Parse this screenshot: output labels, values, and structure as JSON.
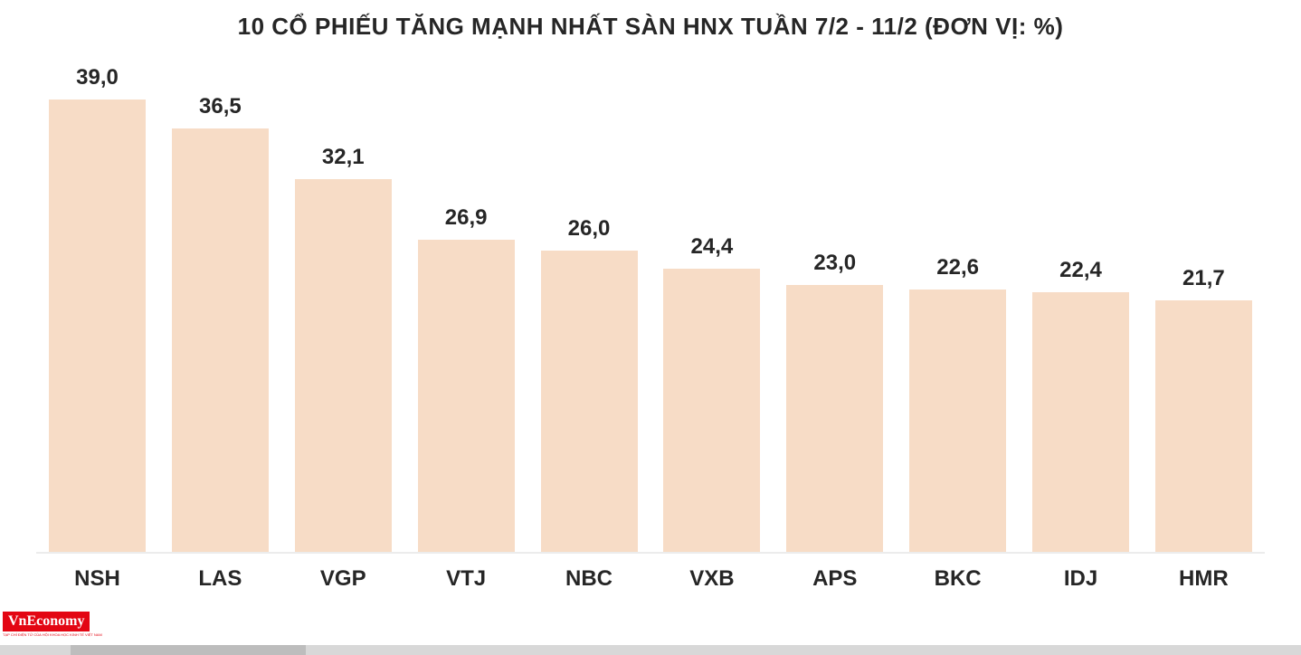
{
  "chart_data": {
    "type": "bar",
    "title": "10 CỔ PHIẾU TĂNG MẠNH NHẤT SÀN HNX TUẦN 7/2 - 11/2 (ĐƠN VỊ: %)",
    "categories": [
      "NSH",
      "LAS",
      "VGP",
      "VTJ",
      "NBC",
      "VXB",
      "APS",
      "BKC",
      "IDJ",
      "HMR"
    ],
    "values": [
      39.0,
      36.5,
      32.1,
      26.9,
      26.0,
      24.4,
      23.0,
      22.6,
      22.4,
      21.7
    ],
    "value_labels": [
      "39,0",
      "36,5",
      "32,1",
      "26,9",
      "26,0",
      "24,4",
      "23,0",
      "22,6",
      "22,4",
      "21,7"
    ],
    "xlabel": "",
    "ylabel": "",
    "ylim": [
      0,
      39
    ],
    "grid": false,
    "legend": "none",
    "bar_color": "#f7dcc6",
    "label_color": "#262626"
  },
  "branding": {
    "logo_text": "VnEconomy",
    "logo_bg": "#e30613",
    "tagline": "TẠP CHÍ ĐIỆN TỬ CỦA HỘI KHOA HỌC KINH TẾ VIỆT NAM"
  }
}
